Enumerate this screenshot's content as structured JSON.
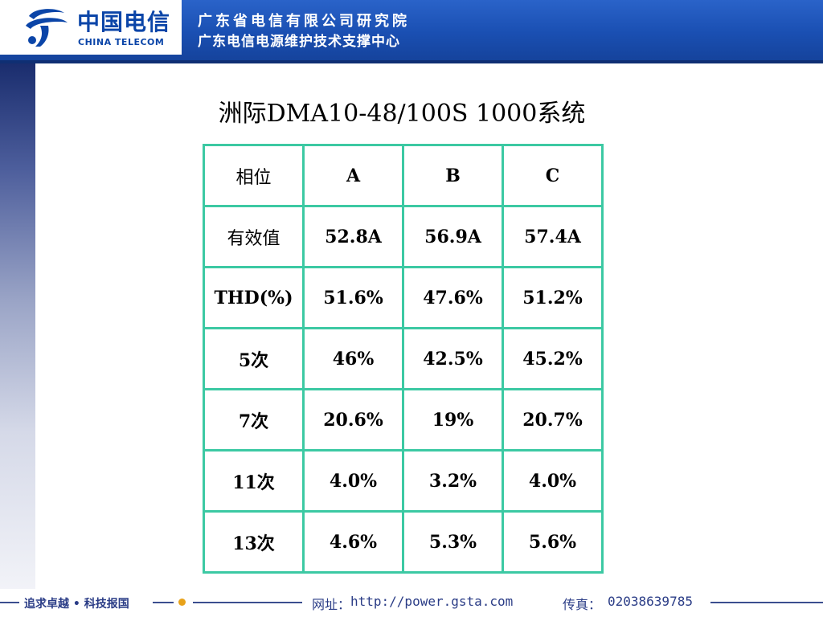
{
  "header": {
    "logo_cn": "中国电信",
    "logo_en": "CHINA TELECOM",
    "org_line1": "广东省电信有限公司研究院",
    "org_line2": "广东电信电源维护技术支撑中心",
    "colors": {
      "band": "#1a4fb2",
      "logo": "#0b45a8"
    }
  },
  "title": "洲际DMA10-48/100S 1000系统",
  "table": {
    "header": [
      "相位",
      "A",
      "B",
      "C"
    ],
    "rows": [
      [
        "有效值",
        "52.8A",
        "56.9A",
        "57.4A"
      ],
      [
        "THD(%)",
        "51.6%",
        "47.6%",
        "51.2%"
      ],
      [
        "5次",
        "46%",
        "42.5%",
        "45.2%"
      ],
      [
        "7次",
        "20.6%",
        "19%",
        "20.7%"
      ],
      [
        "11次",
        "4.0%",
        "3.2%",
        "4.0%"
      ],
      [
        "13次",
        "4.6%",
        "5.3%",
        "5.6%"
      ]
    ],
    "border_color": "#3cc9a3"
  },
  "footer": {
    "slogan": "追求卓越 • 科技报国",
    "url_label": "网址：",
    "url": "http://power.gsta.com",
    "fax_label": "传真：",
    "fax": "02038639785",
    "icons": {
      "dot": "orange-dot-icon"
    }
  }
}
